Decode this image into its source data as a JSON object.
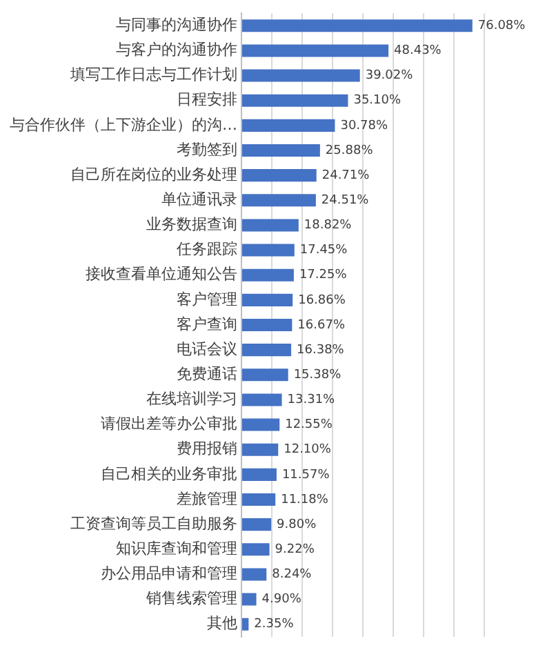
{
  "chart_data": {
    "type": "bar",
    "orientation": "horizontal",
    "categories": [
      "与同事的沟通协作",
      "与客户的沟通协作",
      "填写工作日志与工作计划",
      "日程安排",
      "与合作伙伴（上下游企业）的沟…",
      "考勤签到",
      "自己所在岗位的业务处理",
      "单位通讯录",
      "业务数据查询",
      "任务跟踪",
      "接收查看单位通知公告",
      "客户管理",
      "客户查询",
      "电话会议",
      "免费通话",
      "在线培训学习",
      "请假出差等办公审批",
      "费用报销",
      "自己相关的业务审批",
      "差旅管理",
      "工资查询等员工自助服务",
      "知识库查询和管理",
      "办公用品申请和管理",
      "销售线索管理",
      "其他"
    ],
    "values": [
      76.08,
      48.43,
      39.02,
      35.1,
      30.78,
      25.88,
      24.71,
      24.51,
      18.82,
      17.45,
      17.25,
      16.86,
      16.67,
      16.38,
      15.38,
      13.31,
      12.55,
      12.1,
      11.57,
      11.18,
      9.8,
      9.22,
      8.24,
      4.9,
      2.35
    ],
    "value_labels": [
      "76.08%",
      "48.43%",
      "39.02%",
      "35.10%",
      "30.78%",
      "25.88%",
      "24.71%",
      "24.51%",
      "18.82%",
      "17.45%",
      "17.25%",
      "16.86%",
      "16.67%",
      "16.38%",
      "15.38%",
      "13.31%",
      "12.55%",
      "12.10%",
      "11.57%",
      "11.18%",
      "9.80%",
      "9.22%",
      "8.24%",
      "4.90%",
      "2.35%"
    ],
    "color": "#4472c4",
    "xlim": [
      0,
      80
    ],
    "xticks": [
      {
        "value": 0,
        "label": null
      },
      {
        "value": 10,
        "label": null
      },
      {
        "value": 20,
        "label": null
      },
      {
        "value": 30,
        "label": null
      },
      {
        "value": 40,
        "label": null
      },
      {
        "value": 50,
        "label": null
      },
      {
        "value": 60,
        "label": null
      },
      {
        "value": 70,
        "label": null
      },
      {
        "value": 80,
        "label": null
      }
    ],
    "grid": "x",
    "tick_labels": "y",
    "legend": false
  }
}
